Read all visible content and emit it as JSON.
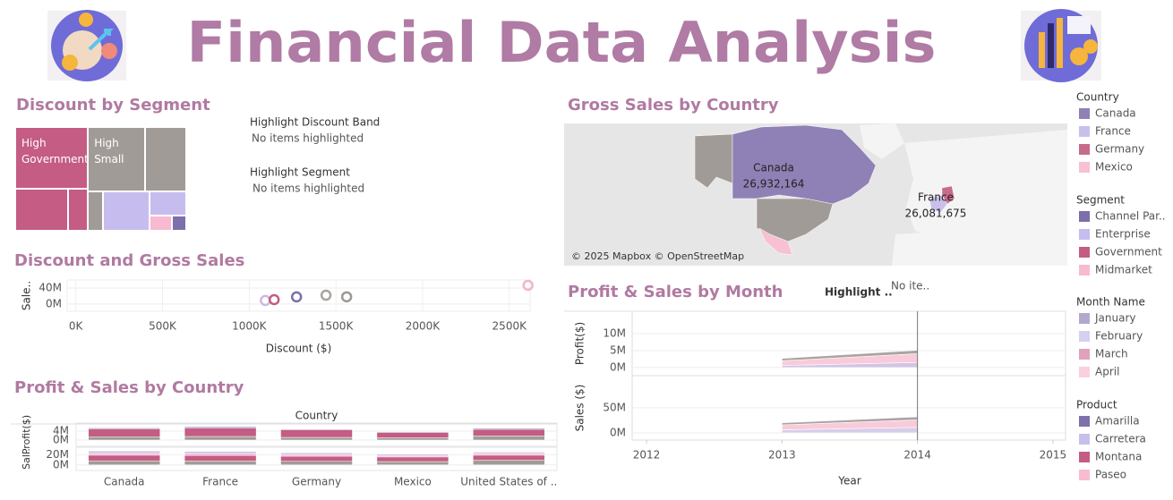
{
  "header": {
    "title": "Financial Data Analysis"
  },
  "highlights": [
    {
      "title": "Highlight Discount Band",
      "text": "No items highlighted"
    },
    {
      "title": "Highlight Segment",
      "text": "No items highlighted"
    },
    {
      "title": "Highlight ..",
      "text": "No ite.."
    }
  ],
  "legends": [
    {
      "title": "Country",
      "items": [
        {
          "name": "Canada",
          "color": "#8f81b5"
        },
        {
          "name": "France",
          "color": "#c9c0ea"
        },
        {
          "name": "Germany",
          "color": "#c76b8c"
        },
        {
          "name": "Mexico",
          "color": "#f7c0d3"
        }
      ]
    },
    {
      "title": "Segment",
      "items": [
        {
          "name": "Channel Par..",
          "color": "#7c6fab"
        },
        {
          "name": "Enterprise",
          "color": "#c6bdee"
        },
        {
          "name": "Government",
          "color": "#c45c83"
        },
        {
          "name": "Midmarket",
          "color": "#f8bad0"
        }
      ]
    },
    {
      "title": "Month Name",
      "items": [
        {
          "name": "January",
          "color": "#b2a8ce"
        },
        {
          "name": "February",
          "color": "#d5cff0"
        },
        {
          "name": "March",
          "color": "#dfa2ba"
        },
        {
          "name": "April",
          "color": "#fad0de"
        }
      ]
    },
    {
      "title": "Product",
      "items": [
        {
          "name": "Amarilla",
          "color": "#7d70ab"
        },
        {
          "name": "Carretera",
          "color": "#c7bfee"
        },
        {
          "name": "Montana",
          "color": "#c45c83"
        },
        {
          "name": "Paseo",
          "color": "#f9bbd1"
        }
      ]
    }
  ],
  "chart_data": [
    {
      "type": "treemap",
      "title": "Discount by Segment",
      "values": [
        5520,
        2700,
        1020,
        4510,
        3300,
        715,
        2232,
        1080,
        400,
        260
      ],
      "labels": [
        "High Government",
        null,
        null,
        "High Small",
        null,
        null,
        null,
        null,
        null,
        null
      ],
      "colors": [
        "#c45c83",
        "#c45c83",
        "#c45c83",
        "#a19b98",
        "#a19b98",
        "#a19b98",
        "#c6bdee",
        "#c6bdee",
        "#f8bad0",
        "#7c6fab"
      ]
    },
    {
      "type": "scatter",
      "title": "Discount and Gross Sales",
      "xlabel": "Discount ($)",
      "ylabel": "Sale..",
      "x": [
        1093000,
        1144000,
        1273000,
        1443000,
        1562000,
        2608000
      ],
      "values": [
        8900000,
        11000000,
        17800000,
        22000000,
        18000000,
        46700000
      ],
      "colors": [
        "#c9b9e6",
        "#c45c83",
        "#7c6fab",
        "#aaa3a0",
        "#9d9895",
        "#f4b3c8"
      ],
      "xlim": [
        -50000,
        2620000
      ],
      "xticks": [
        {
          "value": 0,
          "label": "0K"
        },
        {
          "value": 500000,
          "label": "500K"
        },
        {
          "value": 1000000,
          "label": "1000K"
        },
        {
          "value": 1500000,
          "label": "1500K"
        },
        {
          "value": 2000000,
          "label": "2000K"
        },
        {
          "value": 2500000,
          "label": "2500K"
        }
      ],
      "ylim": [
        -18000000,
        60000000
      ],
      "yticks": [
        {
          "value": 0,
          "label": "0M"
        },
        {
          "value": 40000000,
          "label": "40M"
        }
      ]
    },
    {
      "type": "stacked_bar",
      "title": "Profit & Sales by Country",
      "x_header": "Country",
      "categories": [
        "Canada",
        "France",
        "Germany",
        "Mexico",
        "United States of .."
      ],
      "panels": [
        {
          "ylabel": "Profit($)",
          "ylim": [
            -2800000,
            7600000
          ],
          "yticks": [
            {
              "value": 0,
              "label": "0M"
            },
            {
              "value": 4000000,
              "label": "4M"
            }
          ],
          "series": [
            {
              "color": "#a19b98",
              "values": [
                1500000,
                1600000,
                1200000,
                1000000,
                1800000
              ]
            },
            {
              "color": "#c45c83",
              "values": [
                3500000,
                3800000,
                3400000,
                2400000,
                3000000
              ]
            },
            {
              "color": "#7c6fab",
              "values": [
                400000,
                500000,
                300000,
                300000,
                400000
              ]
            }
          ]
        },
        {
          "ylabel": "Sal..",
          "ylim": [
            -10900000,
            34500000
          ],
          "yticks": [
            {
              "value": 0,
              "label": "0M"
            },
            {
              "value": 20000000,
              "label": "20M"
            }
          ],
          "series": [
            {
              "color": "#a19b98",
              "values": [
                8000000,
                7500000,
                7000000,
                6500000,
                9000000
              ]
            },
            {
              "color": "#c45c83",
              "values": [
                11000000,
                11000000,
                10000000,
                9000000,
                10000000
              ]
            },
            {
              "color": "#f8bad0",
              "values": [
                4000000,
                4000000,
                3500000,
                3000000,
                3500000
              ]
            },
            {
              "color": "#c6bdee",
              "values": [
                3900000,
                3600000,
                3000000,
                2400000,
                2500000
              ]
            }
          ]
        }
      ]
    },
    {
      "type": "map",
      "title": "Gross Sales by Country",
      "categories": [
        "Canada",
        "France"
      ],
      "values": [
        26932164,
        26081675
      ],
      "value_labels": [
        "26,932,164",
        "26,081,675"
      ],
      "attribution": "© 2025 Mapbox © OpenStreetMap"
    },
    {
      "type": "area",
      "title": "Profit & Sales by Month",
      "xlabel": "Year",
      "x": [
        2013,
        2014
      ],
      "xlim": [
        2011.894,
        2015.093
      ],
      "xticks": [
        2012,
        2013,
        2014,
        2015
      ],
      "reference_x": 2014,
      "panels": [
        {
          "ylabel": "Profit($)",
          "ylim": [
            -2400000,
            16600000
          ],
          "yticks": [
            {
              "value": 0,
              "label": "0M"
            },
            {
              "value": 5000000,
              "label": "5M"
            },
            {
              "value": 10000000,
              "label": "10M"
            }
          ],
          "series": [
            {
              "color": "#cbbfe2",
              "values": [
                600000,
                1500000
              ]
            },
            {
              "color": "#f9c6d6",
              "values": [
                1400000,
                2600000
              ]
            },
            {
              "color": "#a19b98",
              "values": [
                700000,
                1000000
              ]
            }
          ]
        },
        {
          "ylabel": "Sales ($)",
          "ylim": [
            -14300000,
            114000000
          ],
          "yticks": [
            {
              "value": 0,
              "label": "0M"
            },
            {
              "value": 50000000,
              "label": "50M"
            }
          ],
          "series": [
            {
              "color": "#d3c8e8",
              "values": [
                6000000,
                11000000
              ]
            },
            {
              "color": "#f9c6d6",
              "values": [
                10000000,
                15000000
              ]
            },
            {
              "color": "#a19b98",
              "values": [
                4000000,
                6000000
              ]
            }
          ]
        }
      ]
    }
  ]
}
